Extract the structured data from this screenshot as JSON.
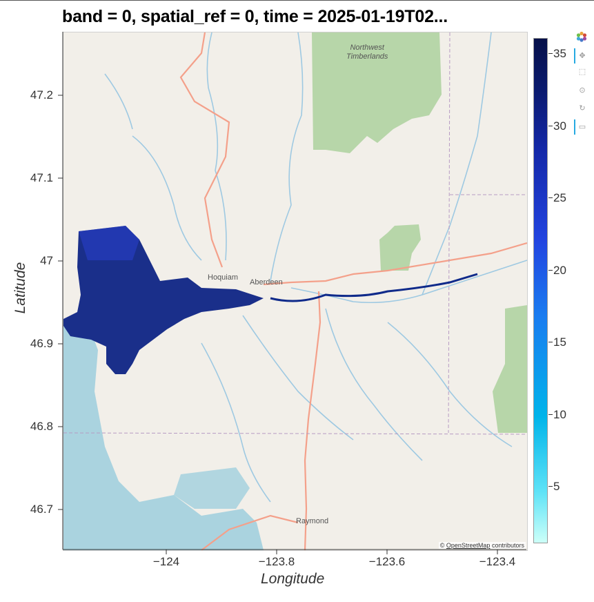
{
  "title": "band = 0, spatial_ref = 0, time = 2025-01-19T02...",
  "xlabel": "Longitude",
  "ylabel": "Latitude",
  "x_ticks": [
    "−124",
    "−123.8",
    "−123.6",
    "−123.4"
  ],
  "y_ticks": [
    "47.2",
    "47.1",
    "47",
    "46.9",
    "46.8",
    "46.7"
  ],
  "colorbar": {
    "ticks": [
      "35",
      "30",
      "25",
      "20",
      "15",
      "10",
      "5"
    ],
    "range": [
      1,
      36
    ],
    "colors": [
      "#ccfff8",
      "#00b4ea",
      "#2244e0",
      "#061049"
    ]
  },
  "map_labels": {
    "forest": "Northwest\nTimberlands",
    "hoquiam": "Hoquiam",
    "aberdeen": "Aberdeen",
    "raymond": "Raymond"
  },
  "attribution": {
    "prefix": "©",
    "link": "OpenStreetMap",
    "suffix": "contributors"
  },
  "toolbar": {
    "items": [
      "bokeh-logo-icon",
      "pan-icon",
      "box-zoom-icon",
      "wheel-zoom-icon",
      "reset-icon",
      "hover-icon"
    ]
  },
  "chart_data": {
    "type": "heatmap",
    "title": "band = 0, spatial_ref = 0, time = 2025-01-19T02...",
    "xlabel": "Longitude",
    "ylabel": "Latitude",
    "xlim": [
      -124.2,
      -123.37
    ],
    "ylim": [
      46.65,
      47.27
    ],
    "colorbar_range": [
      1,
      36
    ],
    "basemap": "OpenStreetMap"
  }
}
